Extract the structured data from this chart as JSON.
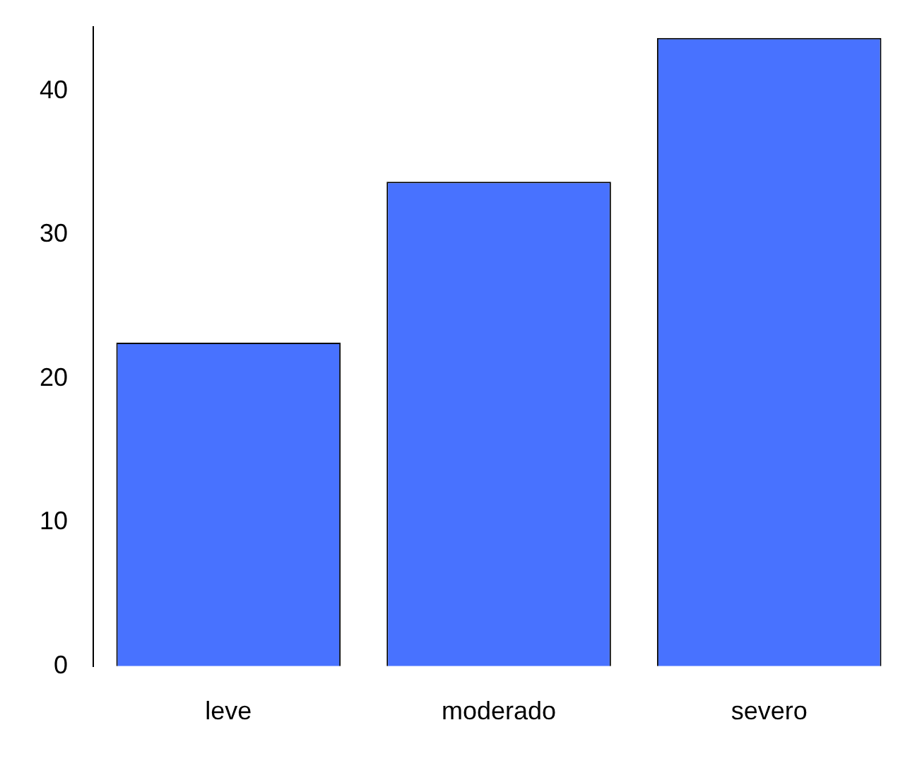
{
  "chart_data": {
    "type": "bar",
    "categories": [
      "leve",
      "moderado",
      "severo"
    ],
    "values": [
      22.5,
      33.7,
      43.7
    ],
    "color": "#4872ff",
    "ylim": [
      0,
      44.5
    ],
    "yticks": [
      0,
      10,
      20,
      30,
      40
    ],
    "grid": false,
    "legend": false
  }
}
